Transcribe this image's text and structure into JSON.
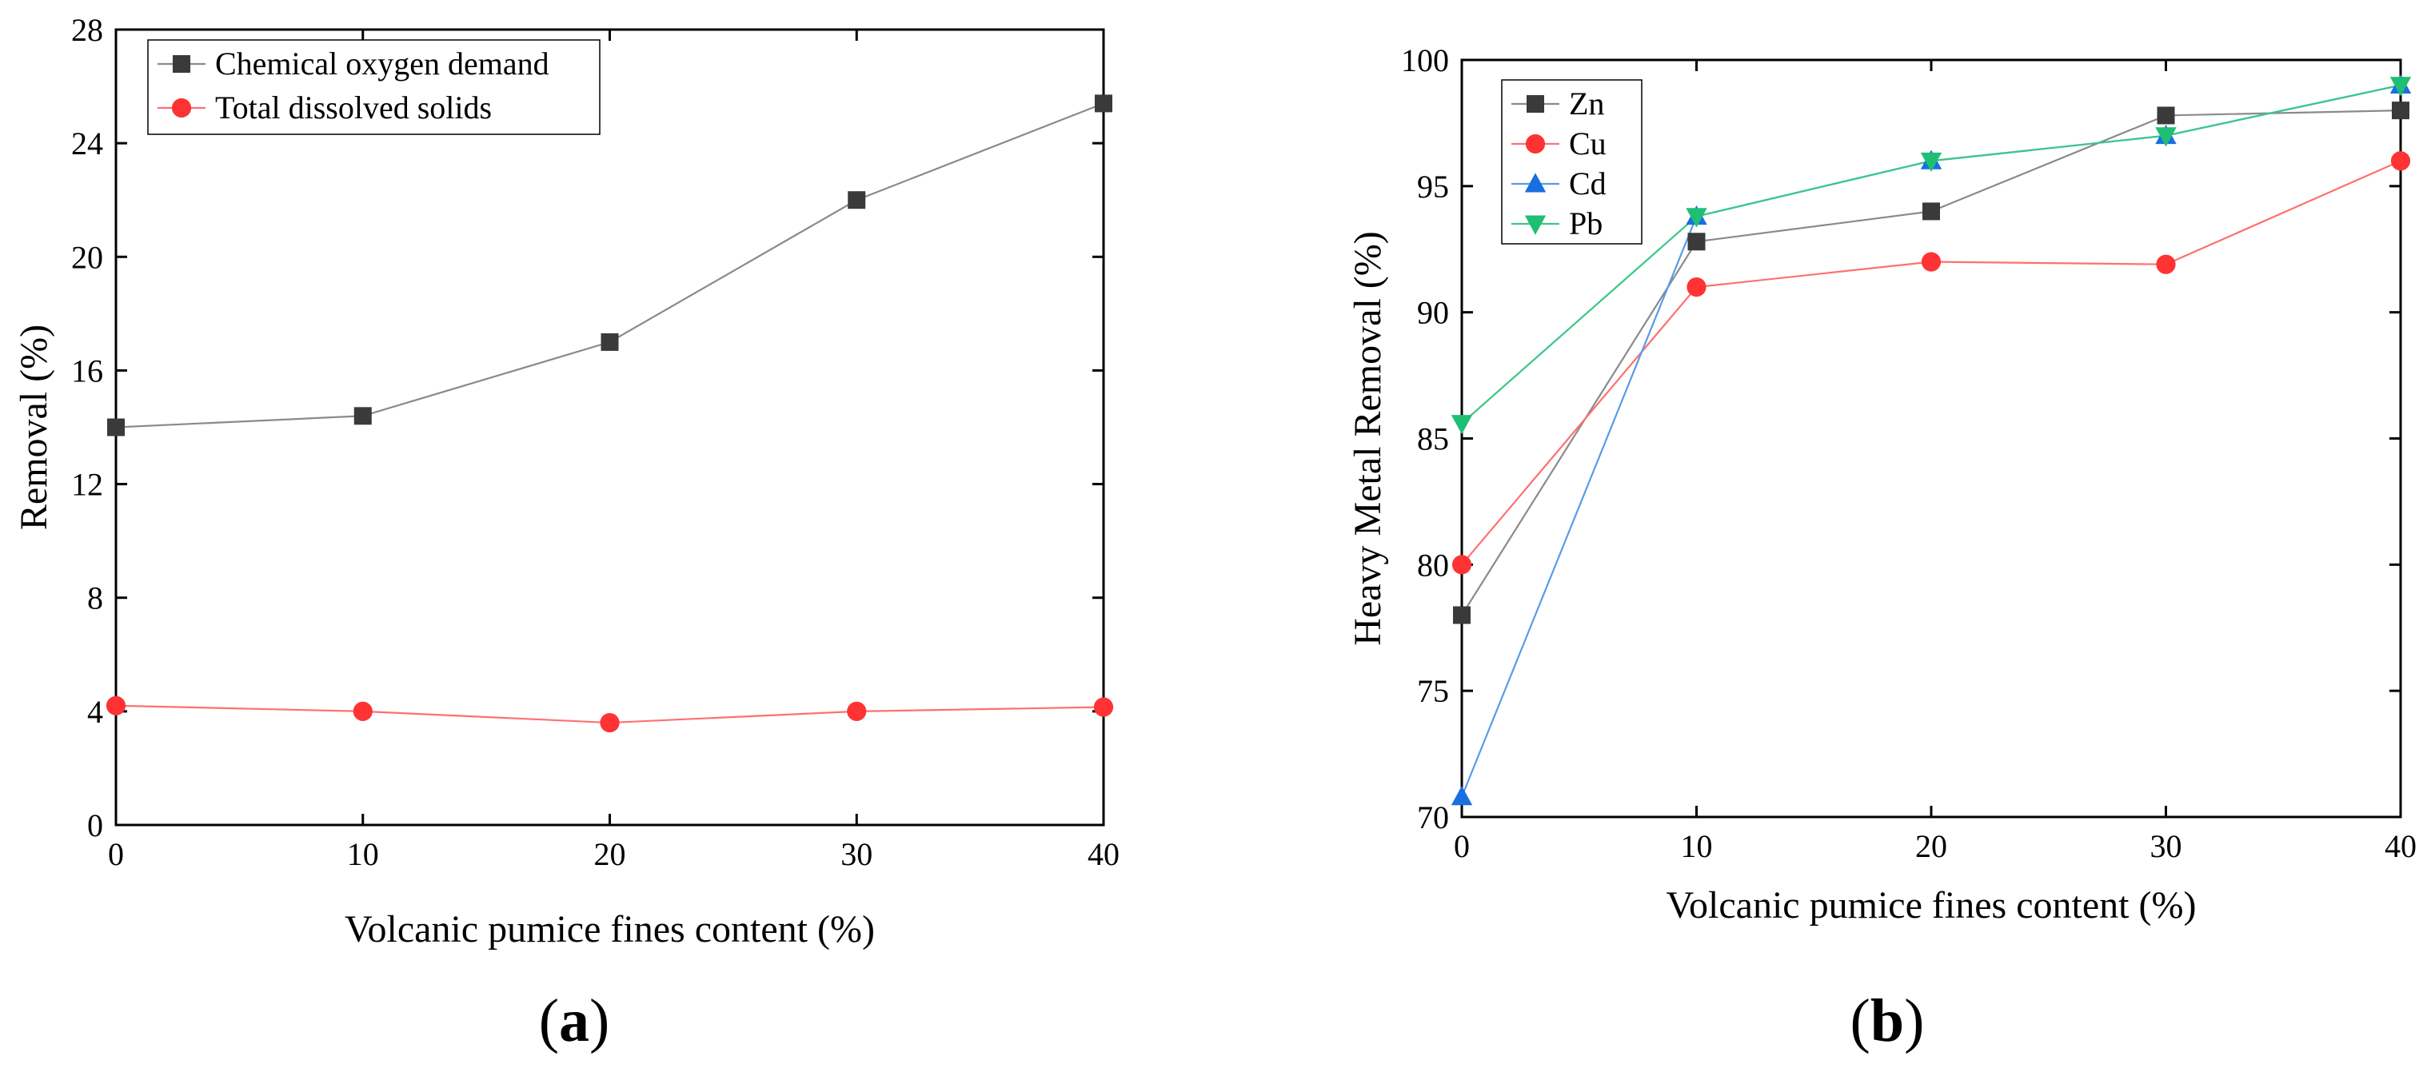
{
  "chart_data": [
    {
      "type": "line",
      "panel_label": {
        "open": "(",
        "letter": "a",
        "close": ")"
      },
      "title": "",
      "xlabel": "Volcanic pumice fines content (%)",
      "ylabel": "Removal (%)",
      "xlim": [
        0,
        40
      ],
      "ylim": [
        0,
        28
      ],
      "xticks": [
        0,
        10,
        20,
        30,
        40
      ],
      "yticks": [
        0,
        4,
        8,
        12,
        16,
        20,
        24,
        28
      ],
      "legend_position": "top-left",
      "x": [
        0,
        10,
        20,
        30,
        40
      ],
      "series": [
        {
          "name": "Chemical oxygen demand",
          "values": [
            14.0,
            14.4,
            17.0,
            22.0,
            25.4
          ],
          "color": "#3a3a3a",
          "line_color": "#8a8a8a",
          "marker": "square"
        },
        {
          "name": "Total dissolved solids",
          "values": [
            4.2,
            4.0,
            3.6,
            4.0,
            4.15
          ],
          "color": "#ff3333",
          "line_color": "#ff7070",
          "marker": "circle"
        }
      ]
    },
    {
      "type": "line",
      "panel_label": {
        "open": "(",
        "letter": "b",
        "close": ")"
      },
      "title": "",
      "xlabel": "Volcanic pumice fines content (%)",
      "ylabel": "Heavy Metal Removal (%)",
      "xlim": [
        0,
        40
      ],
      "ylim": [
        70,
        100
      ],
      "xticks": [
        0,
        10,
        20,
        30,
        40
      ],
      "yticks": [
        70,
        75,
        80,
        85,
        90,
        95,
        100
      ],
      "legend_position": "top-left",
      "x": [
        0,
        10,
        20,
        30,
        40
      ],
      "series": [
        {
          "name": "Zn",
          "values": [
            78.0,
            92.8,
            94.0,
            97.8,
            98.0
          ],
          "color": "#3a3a3a",
          "line_color": "#8a8a8a",
          "marker": "square"
        },
        {
          "name": "Cu",
          "values": [
            80.0,
            91.0,
            92.0,
            91.9,
            96.0
          ],
          "color": "#ff3333",
          "line_color": "#ff7070",
          "marker": "circle"
        },
        {
          "name": "Cd",
          "values": [
            70.8,
            93.8,
            96.0,
            97.0,
            99.0
          ],
          "color": "#1a6fe0",
          "line_color": "#5a9ae8",
          "marker": "triangle-up"
        },
        {
          "name": "Pb",
          "values": [
            85.6,
            93.8,
            96.0,
            97.0,
            99.0
          ],
          "color": "#1fbf73",
          "line_color": "#3ac886",
          "marker": "triangle-down"
        }
      ]
    }
  ]
}
